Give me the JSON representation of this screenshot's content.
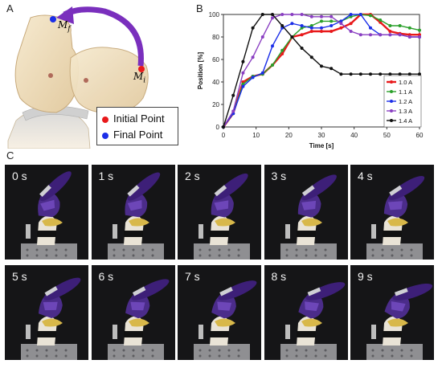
{
  "panels": {
    "a_letter": "A",
    "b_letter": "B",
    "c_letter": "C"
  },
  "panelA": {
    "label_mf": "M",
    "label_mf_sub": "f",
    "label_mi": "M",
    "label_mi_sub": "i",
    "legend": [
      {
        "label": "Initial Point",
        "color": "#e8191b"
      },
      {
        "label": "Final Point",
        "color": "#1b2ee8"
      }
    ],
    "arrow_color": "#7a2fbd"
  },
  "chart_data": {
    "type": "line",
    "xlabel": "Time [s]",
    "ylabel": "Position [%]",
    "xlim": [
      0,
      60
    ],
    "ylim": [
      0,
      100
    ],
    "xticks": [
      0,
      10,
      20,
      30,
      40,
      50,
      60
    ],
    "yticks": [
      0,
      20,
      40,
      60,
      80,
      100
    ],
    "grid": false,
    "legend_position": "right",
    "series": [
      {
        "name": "1.0 A",
        "color": "#e8191b",
        "x": [
          0,
          3,
          6,
          9,
          12,
          15,
          18,
          21,
          24,
          27,
          30,
          33,
          36,
          39,
          42,
          45,
          48,
          51,
          54,
          57,
          60
        ],
        "y": [
          0,
          12,
          40,
          45,
          47,
          55,
          65,
          80,
          82,
          85,
          85,
          85,
          88,
          92,
          100,
          100,
          93,
          85,
          83,
          82,
          82
        ]
      },
      {
        "name": "1.1 A",
        "color": "#2aa02a",
        "x": [
          0,
          3,
          6,
          9,
          12,
          15,
          18,
          21,
          24,
          27,
          30,
          33,
          36,
          39,
          42,
          45,
          48,
          51,
          54,
          57,
          60
        ],
        "y": [
          0,
          12,
          38,
          45,
          47,
          55,
          68,
          80,
          88,
          90,
          94,
          94,
          94,
          98,
          100,
          99,
          95,
          90,
          90,
          88,
          86
        ]
      },
      {
        "name": "1.2 A",
        "color": "#1b2ee8",
        "x": [
          0,
          3,
          6,
          9,
          12,
          15,
          18,
          21,
          24,
          27,
          30,
          33,
          36,
          39,
          42,
          45,
          48,
          51,
          54,
          57,
          60
        ],
        "y": [
          0,
          12,
          36,
          44,
          48,
          72,
          88,
          92,
          90,
          88,
          88,
          90,
          94,
          100,
          100,
          88,
          82,
          82,
          82,
          80,
          80
        ]
      },
      {
        "name": "1.3 A",
        "color": "#8a3fc2",
        "x": [
          0,
          3,
          6,
          9,
          12,
          15,
          18,
          21,
          24,
          27,
          30,
          33,
          36,
          39,
          42,
          45,
          48,
          51,
          54,
          57,
          60
        ],
        "y": [
          0,
          14,
          48,
          62,
          80,
          97,
          100,
          100,
          100,
          98,
          98,
          98,
          92,
          85,
          82,
          82,
          82,
          82,
          82,
          80,
          80
        ]
      },
      {
        "name": "1.4 A",
        "color": "#111111",
        "x": [
          0,
          3,
          6,
          9,
          12,
          15,
          18,
          21,
          24,
          27,
          30,
          33,
          36,
          39,
          42,
          45,
          48,
          51,
          54,
          57,
          60
        ],
        "y": [
          0,
          28,
          58,
          88,
          100,
          100,
          90,
          80,
          70,
          62,
          54,
          52,
          47,
          47,
          47,
          47,
          47,
          47,
          47,
          47,
          47
        ]
      }
    ]
  },
  "panelC": {
    "frames": [
      "0 s",
      "1 s",
      "2 s",
      "3 s",
      "4 s",
      "5 s",
      "6 s",
      "7 s",
      "8 s",
      "9 s"
    ]
  }
}
